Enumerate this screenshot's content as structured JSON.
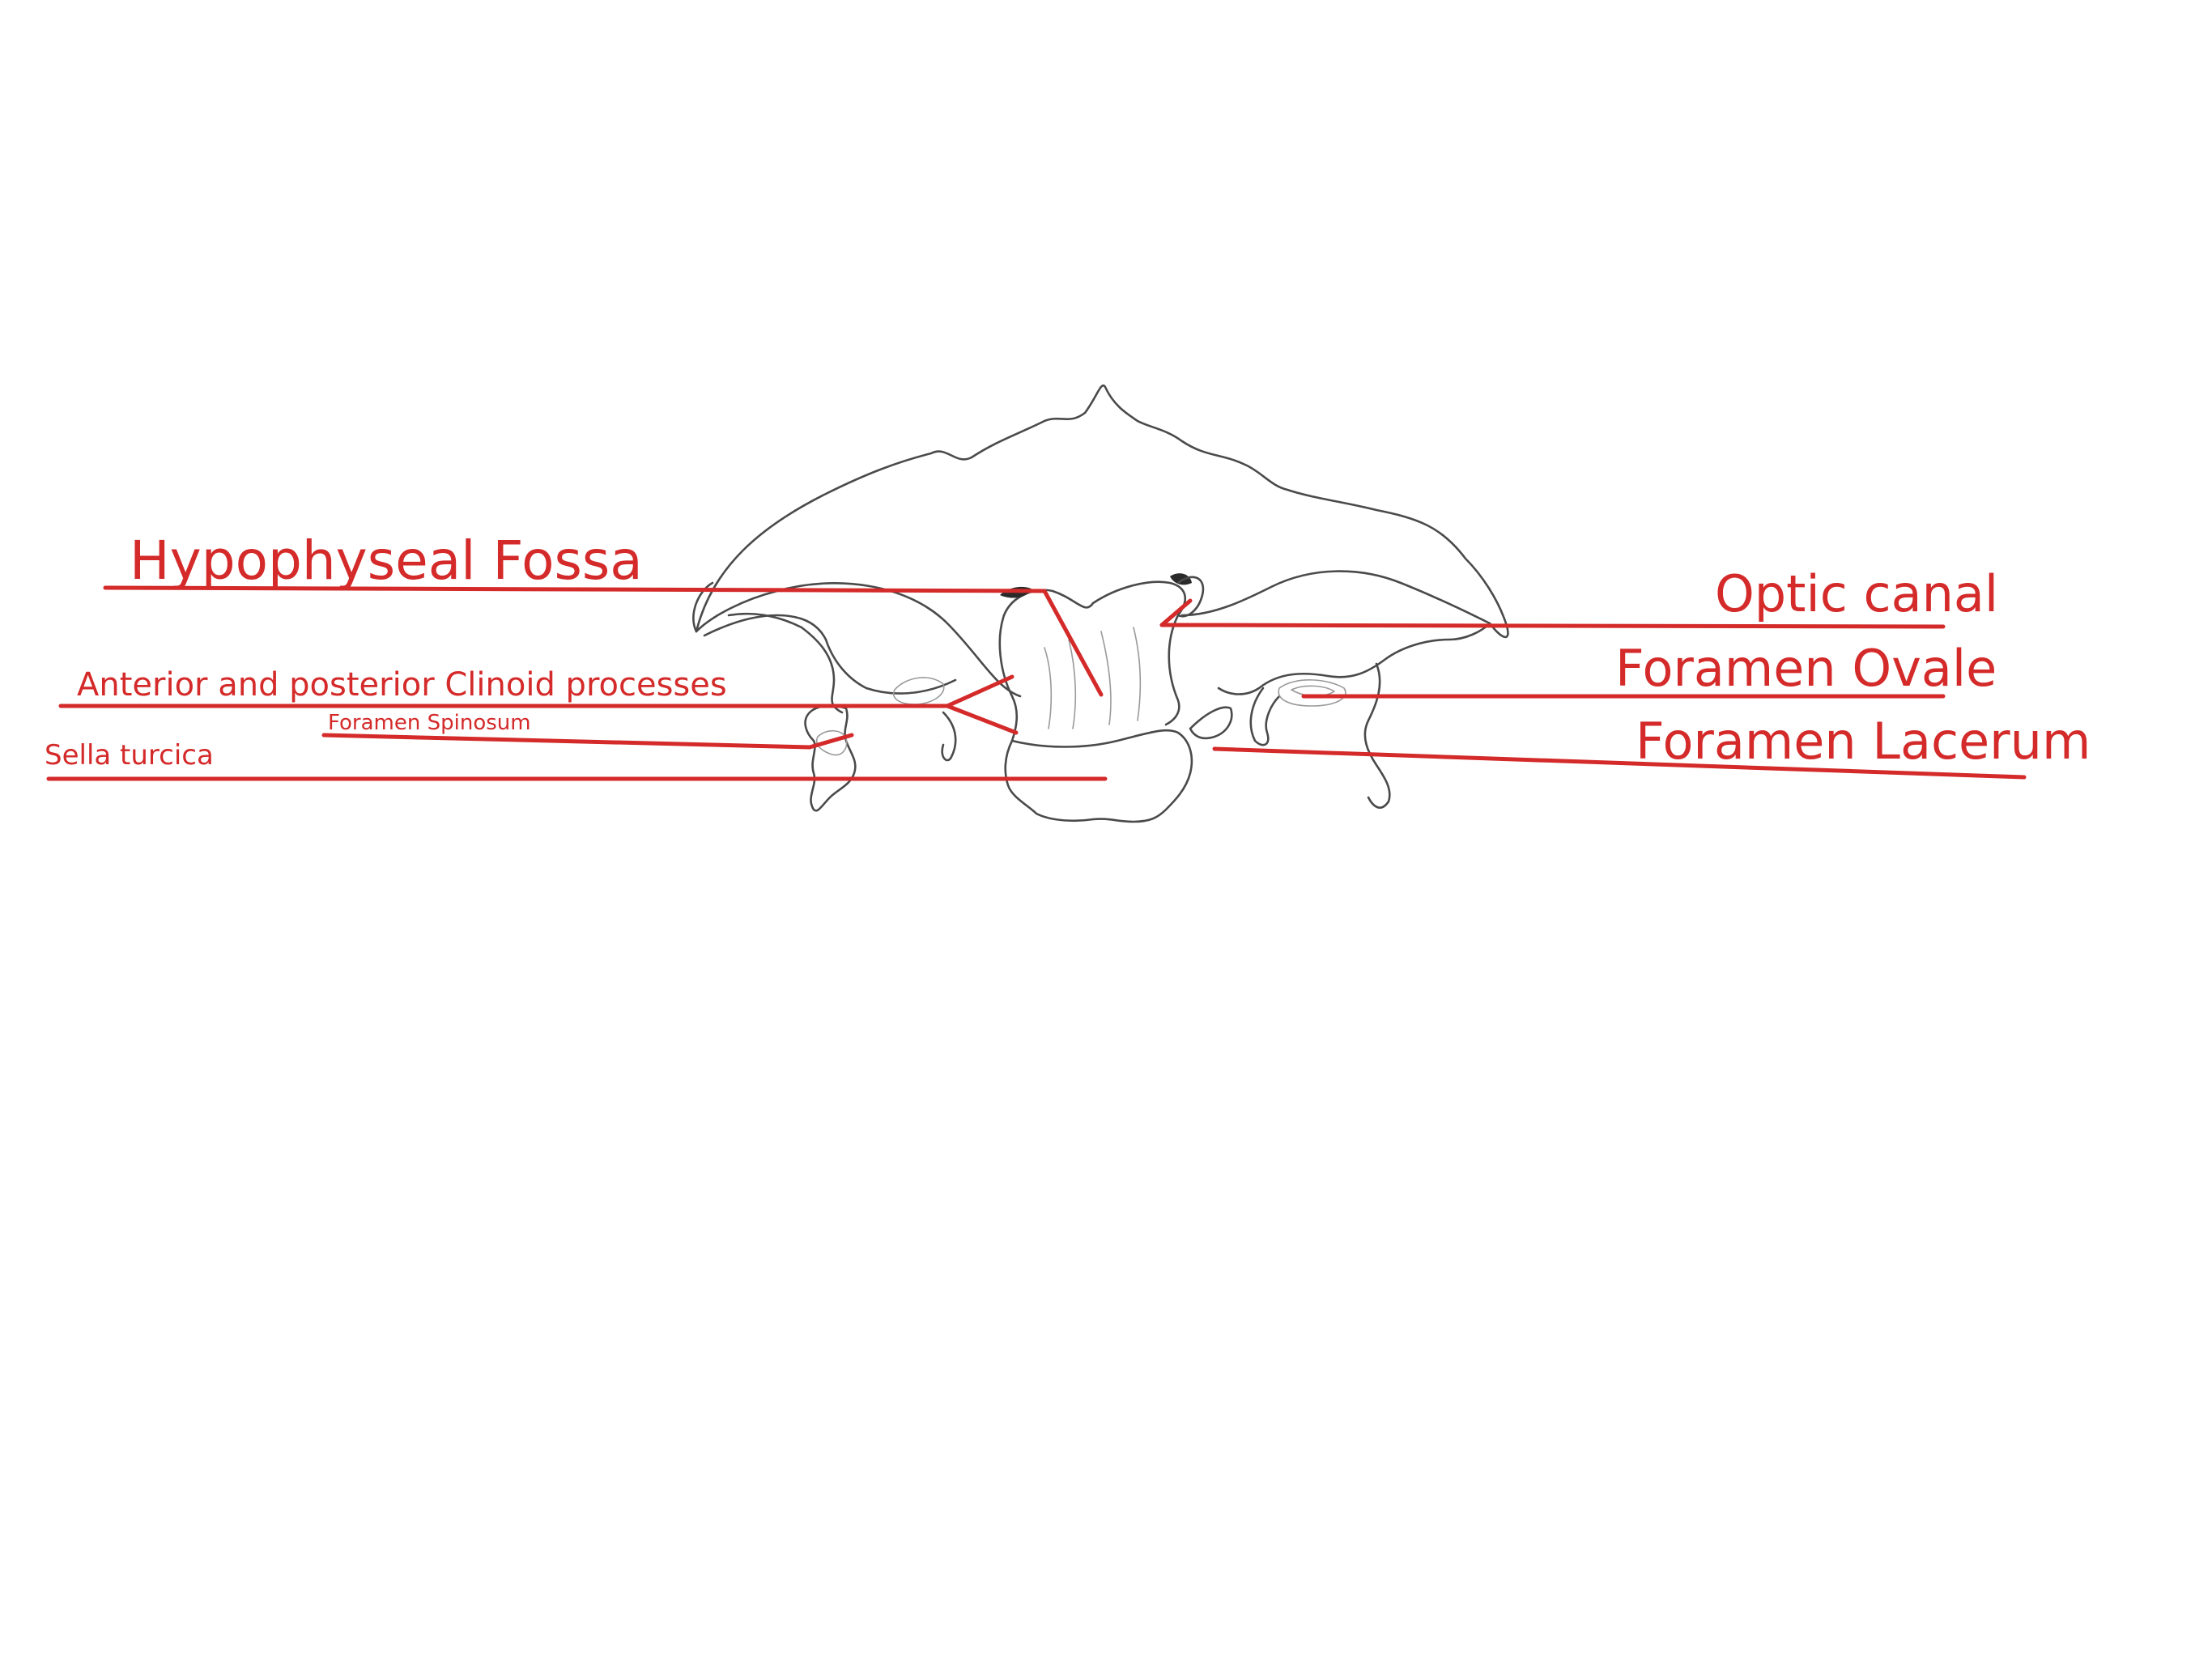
{
  "labels": {
    "hypophyseal_fossa": "Hypophyseal Fossa",
    "anterior_posterior_clinoid": "Anterior and posterior Clinoid processes",
    "foramen_spinosum": "Foramen Spinosum",
    "sella_turcica": "Sella turcica",
    "optic_canal": "Optic canal",
    "foramen_ovale": "Foramen Ovale",
    "foramen_lacerum": "Foramen Lacerum"
  },
  "colors": {
    "annotation": "#d42a2a",
    "sketch": "#4a4a4a",
    "background": "#ffffff"
  }
}
